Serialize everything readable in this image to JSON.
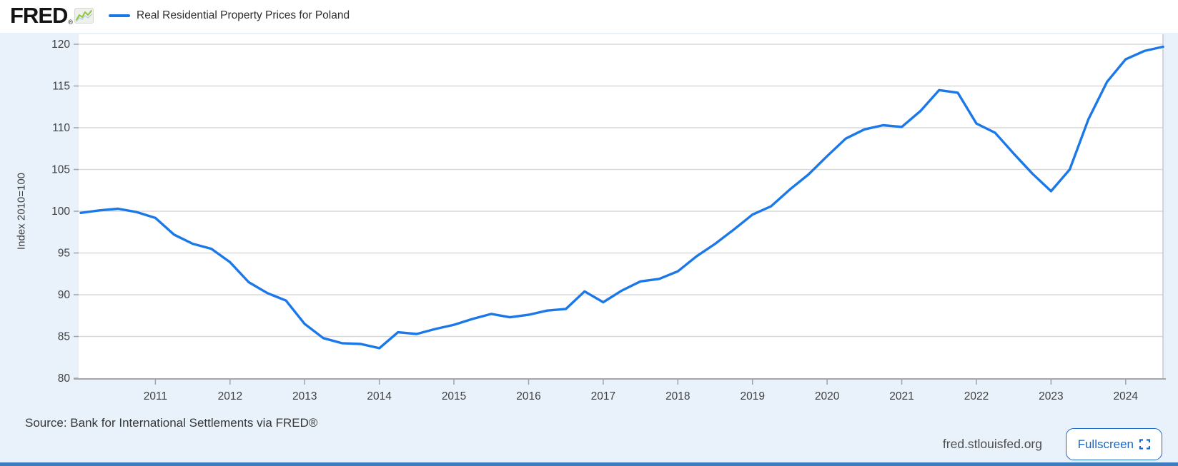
{
  "header": {
    "logo_text": "FRED",
    "logo_registered": "®",
    "legend_label": "Real Residential Property Prices for Poland"
  },
  "chart_data": {
    "type": "line",
    "title": "Real Residential Property Prices for Poland",
    "ylabel": "Index 2010=100",
    "ylim": [
      80,
      120
    ],
    "ytick_interval": 5,
    "grid": true,
    "legend_position": "top-left",
    "frequency": "quarterly",
    "x_start": "2010 Q1",
    "x_end": "2024 Q3",
    "year_ticks": [
      2011,
      2012,
      2013,
      2014,
      2015,
      2016,
      2017,
      2018,
      2019,
      2020,
      2021,
      2022,
      2023,
      2024
    ],
    "line_color": "#1b78e8",
    "series": [
      {
        "name": "Real Residential Property Prices for Poland",
        "values": [
          99.8,
          100.1,
          100.3,
          99.9,
          99.2,
          97.2,
          96.1,
          95.5,
          93.9,
          91.5,
          90.2,
          89.3,
          86.5,
          84.8,
          84.2,
          84.1,
          83.6,
          85.5,
          85.3,
          85.9,
          86.4,
          87.1,
          87.7,
          87.3,
          87.6,
          88.1,
          88.3,
          90.4,
          89.1,
          90.5,
          91.6,
          91.9,
          92.8,
          94.6,
          96.1,
          97.8,
          99.6,
          100.6,
          102.6,
          104.4,
          106.6,
          108.7,
          109.8,
          110.3,
          110.1,
          112.0,
          114.5,
          114.2,
          110.5,
          109.4,
          106.9,
          104.5,
          102.4,
          105.0,
          111.0,
          115.5,
          118.2,
          119.2,
          119.7
        ]
      }
    ]
  },
  "footer": {
    "source": "Source: Bank for International Settlements via FRED®",
    "site": "fred.stlouisfed.org",
    "fullscreen_label": "Fullscreen"
  },
  "colors": {
    "page_bg": "#e9f1fa",
    "plot_bg": "#ffffff",
    "gridline": "#d9d9d9",
    "axis_line": "#a6a6a6",
    "tick": "#9aa5b1",
    "tick_label": "#404040",
    "line": "#1b78e8",
    "accent_blue": "#1668c9",
    "bottom_bar": "#3e7cbe"
  }
}
